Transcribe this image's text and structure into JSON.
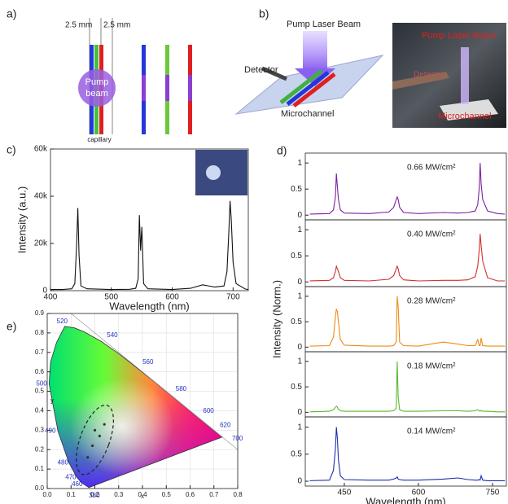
{
  "figure": {
    "labels": [
      "a)",
      "b)",
      "c)",
      "d)",
      "e)"
    ]
  },
  "diagram_a": {
    "spacing_left": "2.5 mm",
    "spacing_right": "2.5 mm",
    "beam_lines": [
      "Pump",
      "beam"
    ],
    "capillary": "capillary"
  },
  "diagram_b": {
    "pump": "Pump Laser Beam",
    "detector": "Detector",
    "channel": "Microchannel",
    "photo_pump": "Pump Laser Beam",
    "photo_detector": "Detector",
    "photo_channel": "Microchannel"
  },
  "chart_data": [
    {
      "type": "line",
      "xlabel": "Wavelength (nm)",
      "ylabel": "Intensity (a.u.)",
      "xlim": [
        400,
        725
      ],
      "xticks": [
        400,
        500,
        600,
        700
      ],
      "ylim": [
        0,
        60000
      ],
      "yticks": [
        0,
        {
          "value": 20000,
          "label": "20k"
        },
        {
          "value": 40000,
          "label": "40k"
        },
        {
          "value": 60000,
          "label": "60k"
        }
      ],
      "x": [
        400,
        420,
        435,
        440,
        443,
        445,
        447,
        450,
        460,
        500,
        530,
        540,
        544,
        546,
        548,
        550,
        553,
        560,
        600,
        630,
        650,
        670,
        685,
        690,
        693,
        695,
        697,
        700,
        705,
        720,
        725
      ],
      "series": [
        {
          "color": "#111111",
          "values": [
            500,
            500,
            800,
            3000,
            20000,
            35000,
            15000,
            2000,
            800,
            500,
            600,
            1000,
            5000,
            32000,
            17000,
            27000,
            3000,
            800,
            500,
            1000,
            2500,
            1500,
            2000,
            8000,
            25000,
            38000,
            30000,
            12000,
            3000,
            700,
            500
          ]
        }
      ]
    },
    {
      "type": "line",
      "annotation": "0.66 MW/cm²",
      "xlim": [
        371,
        778
      ],
      "ylim": [
        -0.09,
        1.19
      ],
      "yticks": [
        0,
        0.5,
        1
      ],
      "x": [
        380,
        420,
        428,
        432,
        434,
        436,
        438,
        442,
        450,
        500,
        540,
        550,
        555,
        557,
        559,
        562,
        570,
        600,
        650,
        680,
        700,
        715,
        720,
        723,
        725,
        727,
        730,
        740,
        760,
        775
      ],
      "series": [
        {
          "color": "#7b1fa2",
          "values": [
            0.02,
            0.03,
            0.1,
            0.35,
            0.8,
            0.55,
            0.3,
            0.1,
            0.04,
            0.03,
            0.06,
            0.15,
            0.3,
            0.35,
            0.3,
            0.15,
            0.05,
            0.03,
            0.05,
            0.04,
            0.05,
            0.08,
            0.2,
            0.5,
            1.0,
            0.6,
            0.3,
            0.08,
            0.03,
            0.02
          ]
        }
      ]
    },
    {
      "type": "line",
      "annotation": "0.40 MW/cm²",
      "xlim": [
        371,
        778
      ],
      "ylim": [
        -0.09,
        1.19
      ],
      "yticks": [
        0,
        0.5,
        1
      ],
      "x": [
        380,
        420,
        428,
        432,
        434,
        436,
        438,
        442,
        450,
        500,
        540,
        550,
        555,
        557,
        559,
        562,
        570,
        600,
        650,
        680,
        700,
        715,
        720,
        723,
        725,
        727,
        730,
        740,
        760,
        775
      ],
      "series": [
        {
          "color": "#d32f2f",
          "values": [
            0.02,
            0.03,
            0.08,
            0.2,
            0.3,
            0.25,
            0.2,
            0.08,
            0.03,
            0.02,
            0.05,
            0.12,
            0.25,
            0.3,
            0.25,
            0.12,
            0.04,
            0.02,
            0.03,
            0.03,
            0.04,
            0.1,
            0.3,
            0.6,
            0.92,
            0.7,
            0.4,
            0.08,
            0.02,
            0.02
          ]
        }
      ]
    },
    {
      "type": "line",
      "annotation": "0.28 MW/cm²",
      "ylabel": "Intensity (Norm.)",
      "xlim": [
        371,
        778
      ],
      "ylim": [
        -0.09,
        1.19
      ],
      "yticks": [
        0,
        0.5,
        1
      ],
      "x": [
        380,
        420,
        428,
        432,
        434,
        436,
        438,
        442,
        450,
        500,
        540,
        550,
        555,
        557,
        559,
        562,
        570,
        600,
        650,
        680,
        700,
        715,
        720,
        723,
        725,
        727,
        730,
        740,
        760,
        775
      ],
      "series": [
        {
          "color": "#ef8a17",
          "values": [
            0.02,
            0.03,
            0.2,
            0.6,
            0.75,
            0.7,
            0.5,
            0.15,
            0.04,
            0.02,
            0.02,
            0.03,
            0.1,
            1.0,
            0.8,
            0.1,
            0.03,
            0.02,
            0.1,
            0.06,
            0.03,
            0.03,
            0.15,
            0.03,
            0.03,
            0.18,
            0.03,
            0.02,
            0.02,
            0.02
          ]
        }
      ]
    },
    {
      "type": "line",
      "annotation": "0.18 MW/cm²",
      "xlim": [
        371,
        778
      ],
      "ylim": [
        -0.09,
        1.19
      ],
      "yticks": [
        0,
        0.5,
        1
      ],
      "x": [
        380,
        420,
        428,
        432,
        434,
        436,
        438,
        442,
        450,
        500,
        540,
        550,
        555,
        557,
        559,
        562,
        570,
        600,
        650,
        680,
        700,
        715,
        720,
        723,
        725,
        727,
        730,
        740,
        760,
        775
      ],
      "series": [
        {
          "color": "#5cb82e",
          "values": [
            0.01,
            0.02,
            0.05,
            0.1,
            0.12,
            0.1,
            0.06,
            0.03,
            0.02,
            0.02,
            0.02,
            0.03,
            0.08,
            1.0,
            0.3,
            0.05,
            0.02,
            0.02,
            0.03,
            0.03,
            0.02,
            0.03,
            0.05,
            0.03,
            0.02,
            0.04,
            0.02,
            0.02,
            0.01,
            0.01
          ]
        }
      ]
    },
    {
      "type": "line",
      "annotation": "0.14 MW/cm²",
      "xlabel": "Wavelength (nm)",
      "xlim": [
        371,
        778
      ],
      "xticks": [
        450,
        600,
        750
      ],
      "ylim": [
        -0.09,
        1.19
      ],
      "yticks": [
        0,
        0.5,
        1
      ],
      "x": [
        380,
        420,
        428,
        432,
        434,
        436,
        438,
        442,
        450,
        500,
        540,
        550,
        555,
        557,
        559,
        562,
        570,
        600,
        650,
        680,
        700,
        715,
        720,
        723,
        725,
        727,
        730,
        740,
        760,
        775
      ],
      "series": [
        {
          "color": "#1a2fb0",
          "values": [
            0.01,
            0.02,
            0.2,
            0.6,
            1.0,
            0.8,
            0.4,
            0.1,
            0.03,
            0.02,
            0.02,
            0.04,
            0.06,
            0.08,
            0.04,
            0.03,
            0.02,
            0.02,
            0.04,
            0.06,
            0.03,
            0.02,
            0.02,
            0.03,
            0.02,
            0.1,
            0.02,
            0.01,
            0.01,
            0.01
          ]
        }
      ]
    },
    {
      "type": "scatter",
      "xlabel": "x",
      "ylabel": "y",
      "grid": true,
      "xlim": [
        0,
        0.8
      ],
      "xticks": [
        {
          "value": 0,
          "label": "0.0"
        },
        0.1,
        0.2,
        0.3,
        0.4,
        0.5,
        0.6,
        0.7,
        0.8
      ],
      "ylim": [
        0,
        0.9
      ],
      "yticks": [
        {
          "value": 0,
          "label": "0.0"
        },
        0.1,
        0.2,
        0.3,
        0.4,
        0.5,
        0.6,
        0.7,
        0.8,
        0.9
      ],
      "locus_labels": [
        "380",
        "460",
        "470",
        "480",
        "490",
        "500",
        "520",
        "540",
        "560",
        "580",
        "600",
        "620",
        "700"
      ],
      "x": [
        0.2,
        0.22,
        0.19,
        0.17,
        0.24
      ],
      "series": [
        {
          "color": "#333333",
          "values": [
            0.3,
            0.27,
            0.22,
            0.16,
            0.33
          ]
        }
      ]
    }
  ]
}
